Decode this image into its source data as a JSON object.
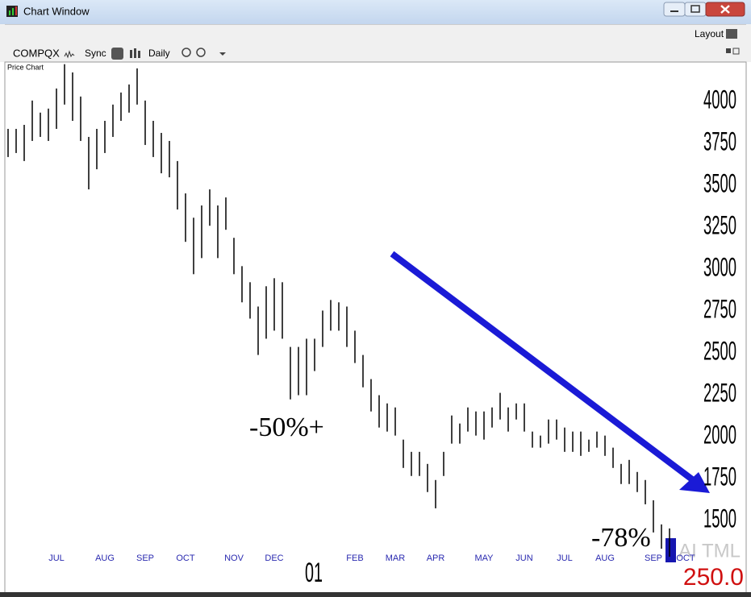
{
  "window": {
    "title": "Chart Window",
    "layout": "Layout",
    "symbol": "COMPQX",
    "sync": "Sync",
    "period": "Daily",
    "panel": "Price Chart"
  },
  "chart_data": {
    "type": "ohlc",
    "categories": [
      null,
      null,
      null,
      null,
      null,
      null,
      "JUL",
      null,
      null,
      null,
      null,
      null,
      "AUG",
      null,
      null,
      null,
      null,
      "SEP",
      null,
      null,
      null,
      null,
      "OCT",
      null,
      null,
      null,
      null,
      null,
      "NOV",
      null,
      null,
      null,
      null,
      "DEC",
      null,
      null,
      null,
      null,
      null,
      null,
      null,
      null,
      null,
      "FEB",
      null,
      null,
      null,
      null,
      "MAR",
      null,
      null,
      null,
      null,
      "APR",
      null,
      null,
      null,
      null,
      null,
      "MAY",
      null,
      null,
      null,
      null,
      "JUN",
      null,
      null,
      null,
      null,
      "JUL",
      null,
      null,
      null,
      null,
      "AUG",
      null,
      null,
      null,
      null,
      null,
      "SEP",
      null,
      null,
      null,
      "OCT"
    ],
    "high": [
      3836,
      3836,
      3860,
      4005,
      3933,
      3957,
      4077,
      4222,
      4173,
      4029,
      3788,
      3836,
      3884,
      3981,
      4053,
      4101,
      4197,
      4005,
      3884,
      3812,
      3764,
      3644,
      3451,
      3306,
      3379,
      3475,
      3379,
      3427,
      3186,
      3017,
      2921,
      2776,
      2897,
      2945,
      2921,
      2535,
      2535,
      2584,
      2584,
      2752,
      2815,
      2801,
      2776,
      2632,
      2487,
      2343,
      2247,
      2198,
      2174,
      1982,
      1909,
      1909,
      1837,
      1741,
      1909,
      2126,
      2078,
      2174,
      2150,
      2150,
      2174,
      2261,
      2174,
      2198,
      2198,
      2030,
      2006,
      2102,
      2102,
      2054,
      2030,
      2030,
      1982,
      2030,
      2006,
      1934,
      1837,
      1861,
      1789,
      1741,
      1620,
      1476,
      1452,
      null,
      null
    ],
    "low": [
      3668,
      3692,
      3644,
      3764,
      3788,
      3764,
      3836,
      3981,
      3884,
      3764,
      3475,
      3595,
      3692,
      3788,
      3884,
      3933,
      3981,
      3740,
      3668,
      3571,
      3547,
      3355,
      3162,
      2969,
      3065,
      3258,
      3065,
      3234,
      2969,
      2801,
      2704,
      2487,
      2584,
      2632,
      2584,
      2222,
      2247,
      2247,
      2391,
      2535,
      2632,
      2632,
      2535,
      2439,
      2294,
      2150,
      2054,
      2030,
      2006,
      1813,
      1765,
      1765,
      1669,
      1572,
      1765,
      1958,
      1958,
      2030,
      2006,
      1982,
      2054,
      2102,
      2030,
      2102,
      2030,
      1934,
      1934,
      1958,
      1982,
      1909,
      1909,
      1885,
      1909,
      1934,
      1885,
      1813,
      1717,
      1717,
      1669,
      1596,
      1428,
      1331,
      1283,
      null,
      null
    ],
    "color": "#000000",
    "ylim": [
      1240,
      4230
    ],
    "yticks": [
      4000,
      3750,
      3500,
      3250,
      3000,
      2750,
      2500,
      2250,
      2000,
      1750,
      1500
    ],
    "year_label": "01",
    "annotations": [
      "-50%+",
      "-78%"
    ],
    "indicator": "AI TML",
    "indicator_value": "250.0"
  }
}
